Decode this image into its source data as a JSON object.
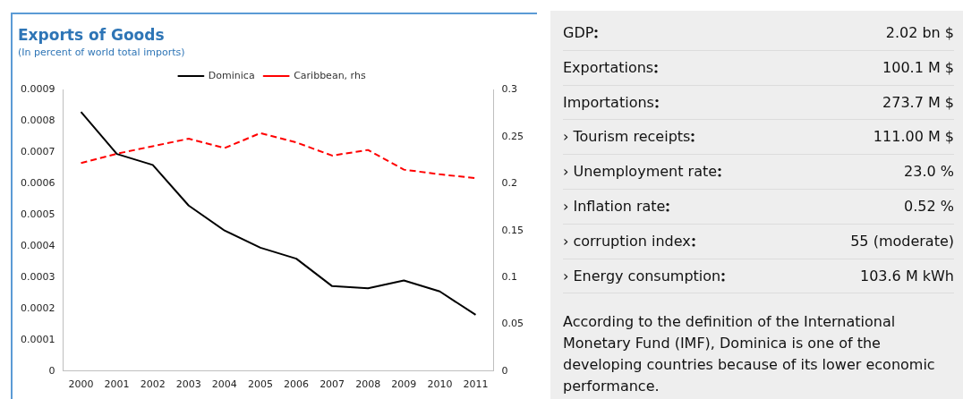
{
  "chart_data": [
    {
      "type": "line",
      "title": "Exports of Goods",
      "subtitle": "(In percent of world total imports)",
      "categories": [
        "2000",
        "2001",
        "2002",
        "2003",
        "2004",
        "2005",
        "2006",
        "2007",
        "2008",
        "2009",
        "2010",
        "2011"
      ],
      "series": [
        {
          "name": "Dominica",
          "color": "#000000",
          "line_style": "solid",
          "values": [
            0.00083,
            0.000695,
            0.00066,
            0.00053,
            0.00045,
            0.000395,
            0.00036,
            0.000272,
            0.000265,
            0.00029,
            0.000255,
            0.00018
          ]
        },
        {
          "name": "Caribbean, rhs",
          "color": "#ff0000",
          "line_style": "dashed",
          "axis": "y2",
          "values": [
            0.222,
            0.232,
            0.24,
            0.248,
            0.238,
            0.254,
            0.244,
            0.23,
            0.236,
            0.215,
            0.21,
            0.206
          ]
        }
      ],
      "ylim": [
        0,
        0.0009
      ],
      "yticks": [
        0,
        0.0001,
        0.0002,
        0.0003,
        0.0004,
        0.0005,
        0.0006,
        0.0007,
        0.0008,
        0.0009
      ],
      "y2lim": [
        0,
        0.3
      ],
      "y2ticks": [
        0,
        0.05,
        0.1,
        0.15,
        0.2,
        0.25,
        0.3
      ],
      "grid": false,
      "legend": "top",
      "marker": "none"
    },
    {
      "type": "other",
      "categories": [
        "GDP",
        "Exportations",
        "Importations",
        "› Tourism receipts",
        "› Unemployment rate",
        "› Inflation rate",
        "› corruption index",
        "› Energy consumption"
      ],
      "value_labels": [
        "2.02 bn $",
        "100.1 M $",
        "273.7 M $",
        "111.00 M $",
        "23.0 %",
        "0.52 %",
        "55 (moderate)",
        "103.6 M kWh"
      ],
      "annotations": [
        "According to the definition of the International Monetary Fund (IMF), Dominica is one of the developing countries because of its lower economic performance."
      ]
    }
  ]
}
